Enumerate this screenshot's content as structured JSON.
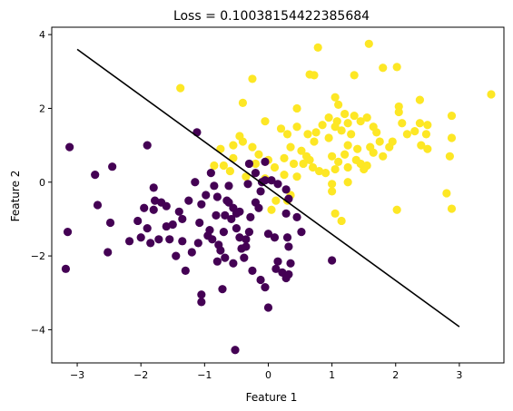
{
  "chart_data": {
    "type": "scatter",
    "title": "Loss = 0.10038154422385684",
    "xlabel": "Feature 1",
    "ylabel": "Feature 2",
    "xlim": [
      -3.4,
      3.7
    ],
    "ylim": [
      -4.9,
      4.2
    ],
    "xticks": [
      -3,
      -2,
      -1,
      0,
      1,
      2,
      3
    ],
    "yticks": [
      -4,
      -2,
      0,
      2,
      4
    ],
    "grid": false,
    "decision_boundary": {
      "x": [
        -3.0,
        3.0
      ],
      "y": [
        3.6,
        -3.92
      ],
      "color": "#000000"
    },
    "series": [
      {
        "color": "#fde725",
        "points": [
          [
            -1.38,
            2.55
          ],
          [
            -0.4,
            2.15
          ],
          [
            -0.25,
            2.8
          ],
          [
            0.65,
            2.92
          ],
          [
            0.78,
            3.65
          ],
          [
            0.72,
            2.9
          ],
          [
            1.1,
            2.1
          ],
          [
            1.05,
            2.3
          ],
          [
            1.35,
            2.9
          ],
          [
            1.58,
            3.75
          ],
          [
            1.8,
            3.1
          ],
          [
            2.02,
            3.12
          ],
          [
            2.38,
            2.23
          ],
          [
            3.5,
            2.38
          ],
          [
            2.88,
            1.8
          ],
          [
            2.88,
            1.2
          ],
          [
            2.85,
            0.7
          ],
          [
            2.8,
            -0.3
          ],
          [
            2.88,
            -0.72
          ],
          [
            2.05,
            2.05
          ],
          [
            2.05,
            1.9
          ],
          [
            2.18,
            1.3
          ],
          [
            2.3,
            1.38
          ],
          [
            2.38,
            1.6
          ],
          [
            2.4,
            1.0
          ],
          [
            2.5,
            0.9
          ],
          [
            2.48,
            1.3
          ],
          [
            2.1,
            1.6
          ],
          [
            1.95,
            1.1
          ],
          [
            1.9,
            0.95
          ],
          [
            1.75,
            1.1
          ],
          [
            1.6,
            0.95
          ],
          [
            1.65,
            0.8
          ],
          [
            1.55,
            0.45
          ],
          [
            1.5,
            0.35
          ],
          [
            1.45,
            0.5
          ],
          [
            1.55,
            1.75
          ],
          [
            1.45,
            1.65
          ],
          [
            1.35,
            1.8
          ],
          [
            1.25,
            1.6
          ],
          [
            1.3,
            1.3
          ],
          [
            1.25,
            1.0
          ],
          [
            1.2,
            0.75
          ],
          [
            1.1,
            0.55
          ],
          [
            1.0,
            0.7
          ],
          [
            0.95,
            1.2
          ],
          [
            1.15,
            1.4
          ],
          [
            1.2,
            1.85
          ],
          [
            1.08,
            1.65
          ],
          [
            1.05,
            1.5
          ],
          [
            0.95,
            1.75
          ],
          [
            0.85,
            1.55
          ],
          [
            0.75,
            1.35
          ],
          [
            0.72,
            1.1
          ],
          [
            0.62,
            1.3
          ],
          [
            0.45,
            1.5
          ],
          [
            0.35,
            0.95
          ],
          [
            0.3,
            1.3
          ],
          [
            0.52,
            0.85
          ],
          [
            0.6,
            0.7
          ],
          [
            0.65,
            0.6
          ],
          [
            0.55,
            0.5
          ],
          [
            0.7,
            0.4
          ],
          [
            0.8,
            0.3
          ],
          [
            0.9,
            0.25
          ],
          [
            1.05,
            0.35
          ],
          [
            1.25,
            0.4
          ],
          [
            1.38,
            0.6
          ],
          [
            1.4,
            0.9
          ],
          [
            1.65,
            1.5
          ],
          [
            0.25,
            0.2
          ],
          [
            0.1,
            0.4
          ],
          [
            0.0,
            0.6
          ],
          [
            -0.15,
            0.75
          ],
          [
            -0.25,
            0.95
          ],
          [
            -0.4,
            1.1
          ],
          [
            -0.45,
            1.25
          ],
          [
            -0.55,
            0.65
          ],
          [
            -0.7,
            0.45
          ],
          [
            -0.75,
            0.9
          ],
          [
            -0.6,
            0.3
          ],
          [
            -0.35,
            0.15
          ],
          [
            -0.2,
            0.5
          ],
          [
            -0.05,
            0.1
          ],
          [
            0.2,
            1.45
          ],
          [
            0.25,
            0.65
          ],
          [
            0.4,
            0.5
          ],
          [
            0.45,
            0.15
          ],
          [
            0.05,
            -0.75
          ],
          [
            0.3,
            -0.5
          ],
          [
            0.35,
            -0.35
          ],
          [
            0.12,
            -0.5
          ],
          [
            1.05,
            -0.85
          ],
          [
            1.15,
            -1.05
          ],
          [
            1.0,
            -0.25
          ],
          [
            1.0,
            -0.05
          ],
          [
            1.25,
            0.0
          ],
          [
            1.8,
            0.7
          ],
          [
            2.02,
            -0.75
          ],
          [
            2.5,
            1.55
          ],
          [
            1.7,
            1.35
          ],
          [
            -0.85,
            0.45
          ],
          [
            -0.05,
            1.65
          ],
          [
            0.45,
            2.0
          ],
          [
            -0.55,
            1.0
          ]
        ]
      },
      {
        "color": "#440154",
        "points": [
          [
            -3.12,
            0.95
          ],
          [
            -3.15,
            -1.35
          ],
          [
            -3.18,
            -2.35
          ],
          [
            -2.72,
            0.2
          ],
          [
            -2.45,
            0.42
          ],
          [
            -2.68,
            -0.62
          ],
          [
            -2.48,
            -1.1
          ],
          [
            -2.52,
            -1.9
          ],
          [
            -2.18,
            -1.6
          ],
          [
            -2.05,
            -1.05
          ],
          [
            -1.9,
            1.0
          ],
          [
            -1.8,
            -0.15
          ],
          [
            -1.78,
            -0.5
          ],
          [
            -1.68,
            -0.55
          ],
          [
            -1.8,
            -0.75
          ],
          [
            -1.95,
            -0.7
          ],
          [
            -2.0,
            -1.5
          ],
          [
            -1.85,
            -1.65
          ],
          [
            -1.72,
            -1.55
          ],
          [
            -1.6,
            -1.2
          ],
          [
            -1.5,
            -1.15
          ],
          [
            -1.4,
            -0.8
          ],
          [
            -1.35,
            -1.0
          ],
          [
            -1.25,
            -0.5
          ],
          [
            -1.35,
            -1.6
          ],
          [
            -1.3,
            -2.4
          ],
          [
            -1.2,
            -1.9
          ],
          [
            -1.1,
            -1.65
          ],
          [
            -1.08,
            -1.1
          ],
          [
            -1.05,
            -0.6
          ],
          [
            -0.85,
            -0.1
          ],
          [
            -0.8,
            -0.4
          ],
          [
            -0.82,
            -0.9
          ],
          [
            -0.92,
            -1.3
          ],
          [
            -0.88,
            -1.55
          ],
          [
            -0.78,
            -1.7
          ],
          [
            -0.7,
            -1.35
          ],
          [
            -0.68,
            -0.9
          ],
          [
            -0.62,
            -0.55
          ],
          [
            -0.55,
            -0.7
          ],
          [
            -0.45,
            -0.8
          ],
          [
            -0.5,
            -1.25
          ],
          [
            -0.42,
            -1.8
          ],
          [
            -0.35,
            -1.75
          ],
          [
            -0.3,
            -1.35
          ],
          [
            -0.28,
            -0.95
          ],
          [
            -0.2,
            -0.55
          ],
          [
            -0.32,
            -0.05
          ],
          [
            -0.3,
            0.5
          ],
          [
            -0.2,
            0.25
          ],
          [
            -0.05,
            0.05
          ],
          [
            0.05,
            0.05
          ],
          [
            0.15,
            -0.05
          ],
          [
            0.28,
            -0.2
          ],
          [
            0.32,
            -0.45
          ],
          [
            0.28,
            -0.85
          ],
          [
            0.3,
            -1.5
          ],
          [
            0.32,
            -1.75
          ],
          [
            0.1,
            -1.5
          ],
          [
            0.0,
            -1.4
          ],
          [
            0.15,
            -2.15
          ],
          [
            0.22,
            -2.45
          ],
          [
            0.12,
            -2.35
          ],
          [
            -0.05,
            -2.85
          ],
          [
            -0.12,
            -2.65
          ],
          [
            -0.25,
            -2.4
          ],
          [
            -0.38,
            -2.05
          ],
          [
            -0.55,
            -2.2
          ],
          [
            -0.68,
            -2.05
          ],
          [
            -0.8,
            -2.15
          ],
          [
            -0.95,
            -1.45
          ],
          [
            -1.05,
            -3.05
          ],
          [
            -1.05,
            -3.25
          ],
          [
            -0.72,
            -2.9
          ],
          [
            -0.52,
            -4.55
          ],
          [
            0.0,
            -3.4
          ],
          [
            0.28,
            -2.6
          ],
          [
            0.32,
            -2.5
          ],
          [
            0.35,
            -2.2
          ],
          [
            0.45,
            -0.95
          ],
          [
            0.52,
            -1.35
          ],
          [
            1.0,
            -2.12
          ],
          [
            -0.5,
            -0.85
          ],
          [
            -0.45,
            -1.5
          ],
          [
            -0.35,
            -1.55
          ],
          [
            -0.15,
            -0.7
          ],
          [
            -0.12,
            -0.25
          ],
          [
            -0.1,
            0.0
          ],
          [
            -0.05,
            0.55
          ],
          [
            -1.15,
            0.0
          ],
          [
            -1.12,
            1.35
          ],
          [
            -0.9,
            0.25
          ],
          [
            -0.62,
            -0.1
          ],
          [
            -0.65,
            -0.5
          ],
          [
            -1.45,
            -2.0
          ],
          [
            -1.6,
            -0.65
          ],
          [
            -1.9,
            -1.25
          ],
          [
            -1.55,
            -1.55
          ],
          [
            -0.98,
            -0.35
          ],
          [
            -0.75,
            -1.85
          ],
          [
            -0.58,
            -1.0
          ]
        ]
      }
    ]
  }
}
